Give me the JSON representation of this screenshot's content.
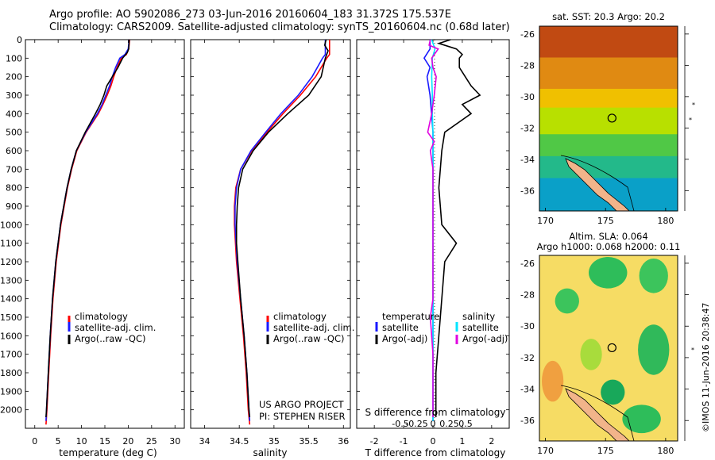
{
  "header": {
    "line1": "Argo profile: AO 5902086_273 03-Jun-2016 20160604_183 31.372S 175.537E",
    "line2": "Climatology: CARS2009. Satellite-adjusted climatology: synTS_20160604.nc (0.68d later)"
  },
  "stamp": "©IMOS 11-Jun-2016 20:38:47",
  "project": {
    "line1": "US ARGO PROJECT",
    "line2": "PI: STEPHEN RISER"
  },
  "colors": {
    "climatology": "#ff0000",
    "satellite": "#1a1aff",
    "argo": "#000000",
    "sat_diff": "#00e5ff",
    "argo_diff": "#e000e0"
  },
  "chart_data": [
    {
      "type": "line",
      "panel": "temperature",
      "xlabel": "temperature (deg C)",
      "xlim": [
        -2,
        32
      ],
      "xticks": [
        0,
        5,
        10,
        15,
        20,
        25,
        30
      ],
      "ylim": [
        0,
        2100
      ],
      "yticks": [
        0,
        100,
        200,
        300,
        400,
        500,
        600,
        700,
        800,
        900,
        1000,
        1100,
        1200,
        1300,
        1400,
        1500,
        1600,
        1700,
        1800,
        1900,
        2000
      ],
      "legend": {
        "position": "bottom-right",
        "entries": [
          "climatology",
          "satellite-adj. clim.",
          "Argo(..raw -QC)"
        ]
      },
      "series": [
        {
          "name": "climatology",
          "color": "#ff0000",
          "depth": [
            0,
            50,
            80,
            100,
            150,
            200,
            250,
            300,
            350,
            400,
            500,
            600,
            700,
            800,
            900,
            1000,
            1200,
            1400,
            1600,
            1800,
            2000,
            2080
          ],
          "values": [
            20.3,
            20.1,
            19.6,
            18.5,
            17.6,
            16.9,
            16.3,
            15.5,
            14.6,
            13.6,
            11.0,
            9.0,
            7.9,
            7.0,
            6.3,
            5.6,
            4.6,
            3.9,
            3.4,
            3.0,
            2.6,
            2.4
          ]
        },
        {
          "name": "satellite-adj. clim.",
          "color": "#1a1aff",
          "depth": [
            0,
            50,
            80,
            100,
            150,
            200,
            250,
            300,
            350,
            400,
            500,
            600,
            700,
            800,
            900,
            1000,
            1200,
            1400,
            1600,
            1800,
            2000,
            2060
          ],
          "values": [
            20.2,
            20.0,
            19.3,
            18.2,
            17.3,
            16.6,
            16.0,
            15.2,
            14.4,
            13.4,
            10.9,
            8.9,
            7.8,
            6.9,
            6.2,
            5.5,
            4.5,
            3.8,
            3.3,
            2.9,
            2.5,
            2.4
          ]
        },
        {
          "name": "Argo(..raw -QC)",
          "color": "#000000",
          "depth": [
            0,
            50,
            70,
            100,
            150,
            200,
            250,
            300,
            350,
            400,
            500,
            600,
            700,
            800,
            900,
            1000,
            1200,
            1400,
            1600,
            1800,
            2000,
            2040
          ],
          "values": [
            20.2,
            20.1,
            19.8,
            18.8,
            17.8,
            16.6,
            15.4,
            14.8,
            14.0,
            13.0,
            10.8,
            8.9,
            7.8,
            6.9,
            6.2,
            5.5,
            4.5,
            3.8,
            3.3,
            2.9,
            2.5,
            2.4
          ]
        }
      ]
    },
    {
      "type": "line",
      "panel": "salinity",
      "xlabel": "salinity",
      "xlim": [
        33.8,
        36.1
      ],
      "xticks": [
        34,
        34.5,
        35,
        35.5,
        36
      ],
      "xticklabels": [
        "34",
        "34.5",
        "35",
        "35.5",
        "36"
      ],
      "ylim": [
        0,
        2100
      ],
      "legend": {
        "position": "bottom-right",
        "entries": [
          "climatology",
          "satellite-adj. clim.",
          "Argo(..raw -QC)"
        ]
      },
      "series": [
        {
          "name": "climatology",
          "color": "#ff0000",
          "depth": [
            0,
            50,
            80,
            100,
            200,
            300,
            400,
            500,
            600,
            700,
            800,
            900,
            1000,
            1200,
            1400,
            1600,
            1800,
            2000,
            2080
          ],
          "values": [
            35.8,
            35.8,
            35.8,
            35.76,
            35.6,
            35.38,
            35.13,
            34.9,
            34.68,
            34.52,
            34.45,
            34.43,
            34.43,
            34.46,
            34.51,
            34.56,
            34.6,
            34.63,
            34.65
          ]
        },
        {
          "name": "satellite-adj. clim.",
          "color": "#1a1aff",
          "depth": [
            0,
            50,
            80,
            100,
            200,
            300,
            400,
            500,
            600,
            700,
            800,
            900,
            1000,
            1200,
            1400,
            1600,
            1800,
            2000,
            2060
          ],
          "values": [
            35.74,
            35.74,
            35.74,
            35.7,
            35.55,
            35.35,
            35.1,
            34.88,
            34.67,
            34.52,
            34.46,
            34.44,
            34.44,
            34.47,
            34.52,
            34.57,
            34.61,
            34.64,
            34.65
          ]
        },
        {
          "name": "Argo(..raw -QC)",
          "color": "#000000",
          "depth": [
            0,
            30,
            60,
            100,
            200,
            300,
            400,
            500,
            600,
            700,
            800,
            900,
            1000,
            1100,
            1200,
            1400,
            1600,
            1800,
            2000,
            2040
          ],
          "values": [
            35.75,
            35.73,
            35.78,
            35.74,
            35.68,
            35.5,
            35.2,
            34.92,
            34.7,
            34.55,
            34.49,
            34.47,
            34.46,
            34.46,
            34.48,
            34.52,
            34.57,
            34.61,
            34.64,
            34.65
          ]
        }
      ]
    },
    {
      "type": "line",
      "panel": "difference",
      "xlabel": "T difference from climatology",
      "xlabel2": "S difference from climatology",
      "xlim": [
        -2.6,
        2.6
      ],
      "xticks": [
        -2,
        -1,
        0,
        1,
        2
      ],
      "sticks": [
        -0.5,
        -0.25,
        0,
        0.25,
        0.5
      ],
      "sticklabels": [
        "-0.5",
        "-0.25",
        "0",
        "0.25",
        "0.5"
      ],
      "ylim": [
        0,
        2100
      ],
      "legend": {
        "position": "bottom-center",
        "temperature_title": "temperature",
        "salinity_title": "salinity",
        "entries": [
          "satellite",
          "Argo(-adj)",
          "satellite",
          "Argo(-adj)"
        ]
      },
      "series": [
        {
          "name": "T satellite",
          "color": "#1a1aff",
          "depth": [
            0,
            50,
            100,
            150,
            200,
            300,
            400,
            500,
            700,
            900,
            1200,
            1500,
            1800,
            2060
          ],
          "values": [
            -0.1,
            -0.1,
            -0.3,
            -0.1,
            -0.2,
            -0.1,
            -0.05,
            0.0,
            0.0,
            0.0,
            0.0,
            0.0,
            0.0,
            0.0
          ]
        },
        {
          "name": "T Argo(-adj)",
          "color": "#000000",
          "depth": [
            0,
            20,
            50,
            80,
            100,
            150,
            200,
            250,
            300,
            350,
            400,
            500,
            600,
            800,
            1000,
            1100,
            1200,
            1400,
            1600,
            1800,
            2040
          ],
          "values": [
            0.6,
            0.2,
            0.8,
            1.0,
            0.9,
            0.9,
            1.1,
            1.3,
            1.6,
            1.0,
            1.3,
            0.4,
            0.3,
            0.2,
            0.3,
            0.8,
            0.4,
            0.3,
            0.2,
            0.1,
            0.1
          ]
        },
        {
          "name": "S satellite",
          "color": "#00e5ff",
          "depth": [
            0,
            50,
            100,
            200,
            300,
            400,
            500,
            700,
            900,
            1200,
            1500,
            1800,
            2060
          ],
          "values": [
            -0.02,
            0.03,
            -0.01,
            -0.02,
            -0.01,
            -0.01,
            0.0,
            0.0,
            0.0,
            0.0,
            0.0,
            0.0,
            0.0
          ]
        },
        {
          "name": "S Argo(-adj)",
          "color": "#e000e0",
          "depth": [
            0,
            30,
            50,
            100,
            150,
            200,
            300,
            400,
            500,
            550,
            600,
            700,
            900,
            1100,
            1400,
            1500,
            1700,
            2040
          ],
          "values": [
            -0.04,
            -0.06,
            0.08,
            -0.02,
            0.0,
            0.05,
            0.02,
            -0.02,
            -0.08,
            0.02,
            -0.04,
            0.0,
            0.0,
            0.0,
            0.0,
            -0.04,
            0.0,
            0.0
          ]
        }
      ]
    },
    {
      "type": "heatmap",
      "panel": "sst_map",
      "title": "sat. SST: 20.3  Argo: 20.2",
      "xlim": [
        169.5,
        181
      ],
      "ylim": [
        -37.3,
        -25.5
      ],
      "xticks": [
        170,
        175,
        180
      ],
      "yticks": [
        -26,
        -28,
        -30,
        -32,
        -34,
        -36
      ],
      "marker": {
        "lon": 175.537,
        "lat": -31.372
      },
      "color_bands": [
        {
          "lat_top": -25.5,
          "lat_bottom": -27.5,
          "color": "#c14a12"
        },
        {
          "lat_top": -27.5,
          "lat_bottom": -29.5,
          "color": "#e08a12"
        },
        {
          "lat_top": -29.5,
          "lat_bottom": -30.7,
          "color": "#f0c000"
        },
        {
          "lat_top": -30.7,
          "lat_bottom": -32.4,
          "color": "#b8e000"
        },
        {
          "lat_top": -32.4,
          "lat_bottom": -33.8,
          "color": "#50c846"
        },
        {
          "lat_top": -33.8,
          "lat_bottom": -35.2,
          "color": "#23b98a"
        },
        {
          "lat_top": -35.2,
          "lat_bottom": -37.3,
          "color": "#0aa0c8"
        }
      ]
    },
    {
      "type": "heatmap",
      "panel": "sla_map",
      "title_line1": "Altim. SLA: 0.064",
      "title_line2": "Argo h1000: 0.068 h2000: 0.11",
      "xlim": [
        169.5,
        181
      ],
      "ylim": [
        -37.3,
        -25.5
      ],
      "xticks": [
        170,
        175,
        180
      ],
      "yticks": [
        -26,
        -28,
        -30,
        -32,
        -34,
        -36
      ],
      "marker": {
        "lon": 175.537,
        "lat": -31.372
      },
      "background_color": "#f6dc64",
      "blobs": [
        {
          "lon": 175.2,
          "lat": -26.6,
          "rx": 1.6,
          "ry": 1.0,
          "color": "#2ebd5a"
        },
        {
          "lon": 179.0,
          "lat": -26.8,
          "rx": 1.2,
          "ry": 1.1,
          "color": "#3cc45c"
        },
        {
          "lon": 171.8,
          "lat": -28.4,
          "rx": 1.0,
          "ry": 0.8,
          "color": "#3cc45c"
        },
        {
          "lon": 173.8,
          "lat": -31.8,
          "rx": 0.9,
          "ry": 1.0,
          "color": "#a8dc3c"
        },
        {
          "lon": 179.0,
          "lat": -31.5,
          "rx": 1.3,
          "ry": 1.6,
          "color": "#30b95a"
        },
        {
          "lon": 175.6,
          "lat": -34.2,
          "rx": 1.0,
          "ry": 0.8,
          "color": "#18a85a"
        },
        {
          "lon": 178.0,
          "lat": -35.9,
          "rx": 1.6,
          "ry": 0.9,
          "color": "#2ebd5a"
        },
        {
          "lon": 170.6,
          "lat": -33.5,
          "rx": 0.9,
          "ry": 1.3,
          "color": "#f0a040"
        }
      ]
    }
  ]
}
